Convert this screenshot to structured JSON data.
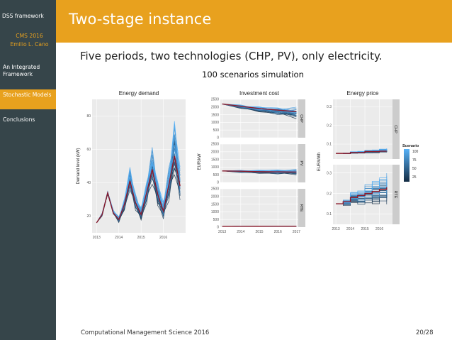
{
  "sidebar": {
    "items": [
      {
        "label": "DSS framework"
      },
      {
        "label": "CMS 2016"
      },
      {
        "label": "Emilio L. Cano"
      },
      {
        "label": "An Integrated Framework"
      },
      {
        "label": "Stochastic Models"
      },
      {
        "label": "Conclusions"
      }
    ]
  },
  "slide": {
    "title": "Two-stage instance",
    "subtitle": "Five periods, two technologies (CHP, PV), only electricity.",
    "figure_title": "100 scenarios simulation",
    "footer_left": "Computational Management Science 2016",
    "footer_right": "20/28"
  },
  "colors": {
    "accent": "#e8a11e",
    "sidebar": "#36454a",
    "panel_bg": "#ebebeb",
    "mean_line": "#8b1a2b",
    "scenario_dark": "#132b43",
    "scenario_light": "#56b1f7"
  },
  "chart_data": [
    {
      "type": "line",
      "title": "Energy demand",
      "xlabel": "",
      "ylabel": "Demand level (kW)",
      "x": [
        2013,
        2013.25,
        2013.5,
        2013.75,
        2014,
        2014.25,
        2014.5,
        2014.75,
        2015,
        2015.25,
        2015.5,
        2015.75,
        2016,
        2016.25,
        2016.5,
        2016.75
      ],
      "series": [
        {
          "name": "mean",
          "values": [
            16,
            21,
            34,
            22,
            18,
            27,
            41,
            28,
            21,
            34,
            48,
            33,
            23,
            39,
            56,
            38
          ]
        },
        {
          "name": "upper",
          "values": [
            16,
            22,
            35,
            24,
            20,
            31,
            51,
            34,
            26,
            42,
            63,
            42,
            30,
            51,
            80,
            52
          ]
        },
        {
          "name": "lower",
          "values": [
            16,
            20,
            33,
            21,
            16,
            23,
            34,
            23,
            17,
            26,
            38,
            25,
            17,
            28,
            42,
            27
          ]
        }
      ],
      "xticks": [
        "2013",
        "2014",
        "2015",
        "2016"
      ],
      "yticks": [
        "20",
        "40",
        "60",
        "80"
      ],
      "ylim": [
        10,
        90
      ],
      "grid": true
    },
    {
      "type": "line",
      "title": "Investment cost",
      "xlabel": "",
      "ylabel": "EUR/kW",
      "xticks": [
        "2013",
        "2014",
        "2015",
        "2016",
        "2017"
      ],
      "yticks": [
        "0",
        "500",
        "1000",
        "1500",
        "2000",
        "2500"
      ],
      "ylim": [
        0,
        2500
      ],
      "facets": [
        {
          "label": "CHP",
          "x": [
            2013,
            2014,
            2015,
            2016,
            2017
          ],
          "mean": [
            2200,
            2050,
            1900,
            1800,
            1700
          ],
          "upper": [
            2200,
            2150,
            2050,
            2000,
            2050
          ],
          "lower": [
            2200,
            1900,
            1650,
            1450,
            1200
          ]
        },
        {
          "label": "PV",
          "x": [
            2013,
            2014,
            2015,
            2016,
            2017
          ],
          "mean": [
            750,
            730,
            700,
            690,
            680
          ],
          "upper": [
            760,
            800,
            820,
            850,
            880
          ],
          "lower": [
            740,
            640,
            570,
            520,
            480
          ]
        },
        {
          "label": "RTE",
          "x": [
            2013,
            2014,
            2015,
            2016,
            2017
          ],
          "mean": [
            50,
            55,
            58,
            60,
            62
          ],
          "upper": [
            50,
            60,
            65,
            70,
            72
          ],
          "lower": [
            50,
            50,
            50,
            52,
            54
          ]
        }
      ],
      "grid": true
    },
    {
      "type": "line",
      "title": "Energy price",
      "xlabel": "",
      "ylabel": "EUR/kWh",
      "xticks": [
        "2013",
        "2014",
        "2015",
        "2016"
      ],
      "facets": [
        {
          "label": "CHP",
          "yticks": [
            "0.1",
            "0.2",
            "0.3"
          ],
          "ylim": [
            0.02,
            0.34
          ],
          "x": [
            2013,
            2013.5,
            2014,
            2014.5,
            2015,
            2015.5,
            2016,
            2016.5
          ],
          "mean": [
            0.05,
            0.05,
            0.055,
            0.055,
            0.06,
            0.06,
            0.062,
            0.062
          ],
          "upper": [
            0.05,
            0.052,
            0.06,
            0.062,
            0.068,
            0.07,
            0.075,
            0.078
          ],
          "lower": [
            0.05,
            0.048,
            0.05,
            0.05,
            0.052,
            0.052,
            0.055,
            0.055
          ]
        },
        {
          "label": "RTE",
          "yticks": [
            "0.1",
            "0.2",
            "0.3"
          ],
          "ylim": [
            0.05,
            0.34
          ],
          "x": [
            2013,
            2013.5,
            2014,
            2014.5,
            2015,
            2015.5,
            2016,
            2016.5
          ],
          "mean": [
            0.15,
            0.16,
            0.18,
            0.19,
            0.2,
            0.21,
            0.22,
            0.23
          ],
          "upper": [
            0.15,
            0.17,
            0.21,
            0.22,
            0.25,
            0.27,
            0.29,
            0.31
          ],
          "lower": [
            0.15,
            0.14,
            0.15,
            0.14,
            0.15,
            0.14,
            0.15,
            0.14
          ]
        }
      ],
      "legend": {
        "title": "Scenario",
        "labels": [
          "100",
          "75",
          "50",
          "25"
        ],
        "position": "right"
      },
      "grid": true
    }
  ]
}
